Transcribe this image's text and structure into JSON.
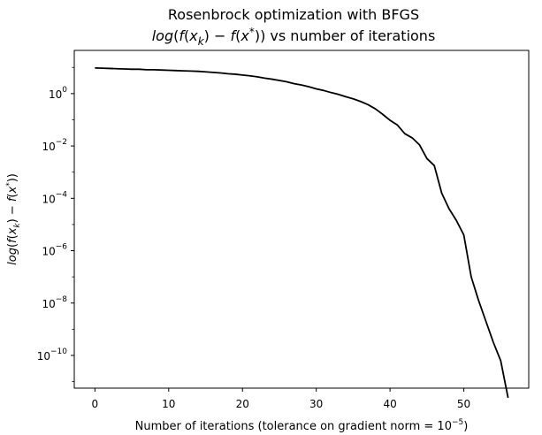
{
  "chart_data": {
    "type": "line",
    "title": "Rosenbrock optimization with BFGS",
    "subtitle": {
      "parts": [
        "log",
        "(",
        "f",
        "(",
        "x",
        "k",
        ") − ",
        "f",
        "(",
        "x",
        "*",
        ")) vs number of iterations"
      ]
    },
    "xlabel": {
      "prefix": "Number of iterations (tolerance on gradient norm = 10",
      "exponent": "−5",
      "suffix": ")"
    },
    "ylabel": {
      "parts": [
        "log",
        "(",
        "f",
        "(",
        "x",
        "k",
        ") − ",
        "f",
        "(",
        "x",
        "*",
        "))"
      ]
    },
    "xlim": [
      -2.8,
      58.8
    ],
    "ylim_log10": [
      -11.25,
      1.65
    ],
    "yscale": "log",
    "grid": false,
    "x_ticks": [
      0,
      10,
      20,
      30,
      40,
      50
    ],
    "y_ticks": [
      {
        "exp": 0,
        "label_exp": "0"
      },
      {
        "exp": -2,
        "label_exp": "−2"
      },
      {
        "exp": -4,
        "label_exp": "−4"
      },
      {
        "exp": -6,
        "label_exp": "−6"
      },
      {
        "exp": -8,
        "label_exp": "−8"
      },
      {
        "exp": -10,
        "label_exp": "−10"
      }
    ],
    "tick_base": "10",
    "series": [
      {
        "color": "#000000",
        "x": [
          0,
          1,
          2,
          3,
          4,
          5,
          6,
          7,
          8,
          9,
          10,
          11,
          12,
          13,
          14,
          15,
          16,
          17,
          18,
          19,
          20,
          21,
          22,
          23,
          24,
          25,
          26,
          27,
          28,
          29,
          30,
          31,
          32,
          33,
          34,
          35,
          36,
          37,
          38,
          39,
          40,
          41,
          42,
          43,
          44,
          45,
          46,
          47,
          48,
          49,
          50,
          51,
          52,
          53,
          54,
          55,
          56
        ],
        "log10_y": [
          0.98,
          0.97,
          0.96,
          0.95,
          0.94,
          0.93,
          0.93,
          0.91,
          0.91,
          0.9,
          0.89,
          0.88,
          0.87,
          0.86,
          0.85,
          0.83,
          0.81,
          0.79,
          0.76,
          0.74,
          0.71,
          0.68,
          0.64,
          0.59,
          0.55,
          0.5,
          0.45,
          0.38,
          0.33,
          0.26,
          0.18,
          0.12,
          0.04,
          -0.03,
          -0.12,
          -0.2,
          -0.3,
          -0.42,
          -0.58,
          -0.79,
          -1.02,
          -1.2,
          -1.53,
          -1.69,
          -1.96,
          -2.48,
          -2.75,
          -3.8,
          -4.4,
          -4.85,
          -5.4,
          -7.0,
          -7.9,
          -8.7,
          -9.5,
          -10.2,
          -11.62
        ]
      }
    ]
  }
}
